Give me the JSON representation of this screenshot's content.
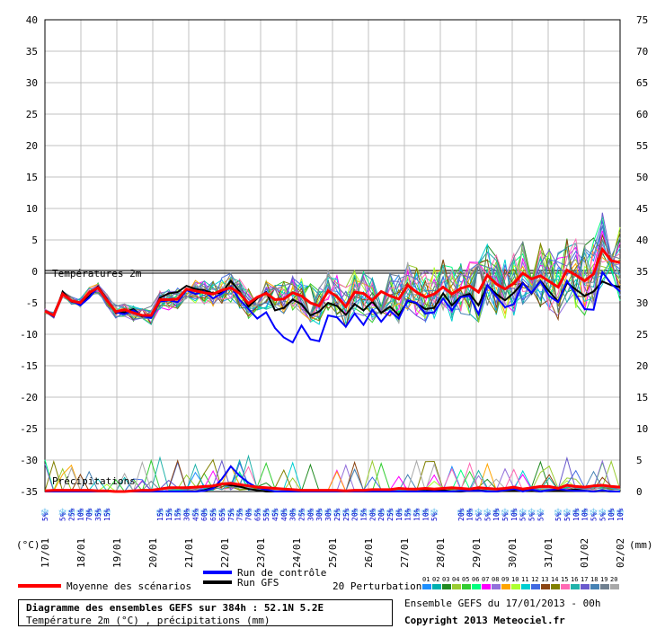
{
  "chart_data": {
    "type": "line",
    "y_left": {
      "ticks": [
        40,
        35,
        30,
        25,
        20,
        15,
        10,
        5,
        0,
        -5,
        -10,
        -15,
        -20,
        -25,
        -30,
        -35
      ],
      "unit": "(°C)"
    },
    "y_right": {
      "ticks": [
        75,
        70,
        65,
        60,
        55,
        50,
        45,
        40,
        35,
        30,
        25,
        20,
        15,
        10,
        5,
        0
      ],
      "unit": "(mm)"
    },
    "x_dates": [
      "17/01",
      "18/01",
      "19/01",
      "20/01",
      "21/01",
      "22/01",
      "23/01",
      "24/01",
      "25/01",
      "26/01",
      "27/01",
      "28/01",
      "29/01",
      "30/01",
      "31/01",
      "01/02",
      "02/02"
    ],
    "x_range_hours": [
      0,
      384
    ],
    "temp_label": "Températures 2m",
    "precip_label": "Précipitations",
    "control_run": {
      "name": "Run de contrôle",
      "color": "#0000ff",
      "t": [
        -6.3,
        -7.2,
        -3.5,
        -4.7,
        -5.4,
        -4.2,
        -2.5,
        -4.5,
        -6.5,
        -6.8,
        -6.2,
        -7.1,
        -7.4,
        -4.8,
        -4.6,
        -4.9,
        -3.0,
        -3.6,
        -3.2,
        -4.3,
        -3.5,
        -2.4,
        -4.5,
        -6.0,
        -7.5,
        -6.5,
        -9.0,
        -10.5,
        -11.3,
        -8.6,
        -10.8,
        -11.1,
        -7.0,
        -7.3,
        -8.8,
        -6.7,
        -8.5,
        -6.1,
        -8.0,
        -6.3,
        -7.5,
        -4.6,
        -5.0,
        -6.7,
        -6.5,
        -4.3,
        -6.2,
        -4.1,
        -3.9,
        -6.8,
        -2.2,
        -4.0,
        -5.7,
        -5.2,
        -1.9,
        -3.4,
        -1.6,
        -3.9,
        -4.9,
        -1.5,
        -3.7,
        -6.0,
        -6.1,
        -0.1,
        -2.0,
        -3.2
      ]
    },
    "gfs_run": {
      "name": "Run GFS",
      "color": "#000000",
      "t": [
        -6.3,
        -7.2,
        -3.2,
        -4.8,
        -5.2,
        -4.0,
        -2.4,
        -4.4,
        -6.6,
        -6.5,
        -6.0,
        -7.2,
        -7.1,
        -4.2,
        -3.5,
        -3.3,
        -2.3,
        -2.8,
        -3.0,
        -3.5,
        -3.4,
        -1.5,
        -3.2,
        -5.6,
        -4.3,
        -3.3,
        -6.2,
        -5.8,
        -4.5,
        -5.2,
        -7.0,
        -6.4,
        -5.0,
        -5.5,
        -6.9,
        -5.2,
        -6.2,
        -4.8,
        -6.6,
        -5.6,
        -7.0,
        -4.7,
        -5.1,
        -6.0,
        -5.8,
        -3.5,
        -5.4,
        -4.0,
        -3.6,
        -5.4,
        -2.2,
        -3.6,
        -4.6,
        -3.4,
        -1.8,
        -3.5,
        -1.5,
        -3.2,
        -4.8,
        -1.8,
        -2.9,
        -3.9,
        -3.2,
        -1.6,
        -2.2,
        -2.5
      ]
    },
    "mean": {
      "name": "Moyenne des scénarios",
      "color": "#ff0000",
      "t": [
        -6.3,
        -7.0,
        -3.6,
        -4.7,
        -5.0,
        -3.4,
        -2.6,
        -4.6,
        -6.4,
        -6.1,
        -6.6,
        -7.0,
        -7.0,
        -4.5,
        -4.5,
        -4.4,
        -2.8,
        -3.1,
        -3.4,
        -3.6,
        -3.0,
        -2.6,
        -3.5,
        -5.1,
        -4.1,
        -3.5,
        -4.5,
        -4.4,
        -3.4,
        -3.9,
        -5.0,
        -5.5,
        -3.1,
        -4.0,
        -5.6,
        -3.3,
        -3.5,
        -4.6,
        -3.2,
        -3.9,
        -4.4,
        -2.2,
        -3.3,
        -4.1,
        -3.6,
        -2.5,
        -3.6,
        -2.7,
        -2.3,
        -3.3,
        -0.6,
        -2.0,
        -2.8,
        -1.9,
        -0.3,
        -1.2,
        -0.7,
        -1.6,
        -2.5,
        0.2,
        -0.6,
        -1.5,
        -0.4,
        3.5,
        1.7,
        1.4
      ]
    },
    "precip_control_mm": [
      0,
      0,
      0,
      0,
      0,
      0,
      0,
      0,
      0,
      0,
      0,
      0,
      0,
      0,
      0,
      0,
      0,
      0,
      0.1,
      0.5,
      2.0,
      4.0,
      2.5,
      1.4,
      0.6,
      0.3,
      0,
      0,
      0,
      0,
      0,
      0,
      0,
      0,
      0,
      0,
      0,
      0,
      0,
      0,
      0,
      0,
      0,
      0,
      0,
      0,
      0,
      0.1,
      0.1,
      0.1,
      0,
      0,
      0.2,
      0.4,
      0,
      0.3,
      0,
      0.2,
      0.4,
      0.2,
      0.1,
      0.1,
      0,
      0.2,
      0,
      0
    ],
    "precip_gfs_mm": [
      0,
      0,
      0,
      0,
      0,
      0,
      0,
      0,
      0,
      0,
      0,
      0,
      0,
      0,
      0,
      0,
      0,
      0,
      0.2,
      0.6,
      1.2,
      1.0,
      0.8,
      0.4,
      0.2,
      0,
      0,
      0,
      0,
      0,
      0,
      0,
      0,
      0,
      0,
      0,
      0,
      0,
      0,
      0,
      0,
      0,
      0,
      0.1,
      0.1,
      0.2,
      0,
      0,
      0.1,
      0.2,
      0,
      0,
      0.1,
      0.1,
      0.2,
      0.1,
      0,
      0.2,
      0.1,
      0.2,
      0.3,
      0.1,
      0,
      0.1,
      0,
      0
    ],
    "precip_mean_mm": [
      0.1,
      0.2,
      0.2,
      0.2,
      0.2,
      0.2,
      0.1,
      0.1,
      0,
      0,
      0.1,
      0.2,
      0.2,
      0.4,
      0.6,
      0.6,
      0.6,
      0.7,
      0.8,
      0.9,
      1.2,
      1.3,
      1.1,
      0.9,
      0.7,
      0.6,
      0.5,
      0.4,
      0.3,
      0.2,
      0.2,
      0.2,
      0.2,
      0.2,
      0.1,
      0.2,
      0.2,
      0.3,
      0.3,
      0.3,
      0.5,
      0.4,
      0.4,
      0.5,
      0.4,
      0.5,
      0.6,
      0.5,
      0.4,
      0.6,
      0.5,
      0.4,
      0.5,
      0.7,
      0.4,
      0.6,
      0.8,
      0.8,
      0.5,
      1.0,
      0.8,
      0.7,
      0.9,
      1.0,
      0.8,
      0.7
    ],
    "precip_probability": [
      "5%",
      "",
      "5%",
      "25%",
      "10%",
      "70%",
      "35%",
      "15%",
      "",
      "",
      "",
      "",
      "",
      "15%",
      "15%",
      "15%",
      "30%",
      "45%",
      "60%",
      "65%",
      "65%",
      "75%",
      "75%",
      "70%",
      "65%",
      "55%",
      "45%",
      "40%",
      "30%",
      "25%",
      "30%",
      "30%",
      "30%",
      "25%",
      "25%",
      "20%",
      "15%",
      "20%",
      "20%",
      "25%",
      "10%",
      "15%",
      "15%",
      "10%",
      "5%",
      "",
      "",
      "20%",
      "10%",
      "5%",
      "5%",
      "10%",
      "5%",
      "10%",
      "5%",
      "5%",
      "5%",
      "",
      "5%",
      "5%",
      "10%",
      "10%",
      "5%",
      "5%",
      "10%",
      "10%"
    ],
    "perturbations_label": "20 Perturbations",
    "perturbation_ids": [
      "01",
      "02",
      "03",
      "04",
      "05",
      "06",
      "07",
      "08",
      "09",
      "10",
      "11",
      "12",
      "13",
      "14",
      "15",
      "16",
      "17",
      "18",
      "19",
      "20"
    ],
    "perturbation_colors": [
      "#1e90ff",
      "#00b0b0",
      "#228b22",
      "#9acd32",
      "#32cd32",
      "#00ff7f",
      "#ff00ff",
      "#9370db",
      "#ffa500",
      "#adff2f",
      "#00ced1",
      "#4169e1",
      "#8b4513",
      "#808000",
      "#ff69b4",
      "#20b2aa",
      "#6a5acd",
      "#4682b4",
      "#708090",
      "#a9a9a9"
    ]
  },
  "legend": {
    "mean": "Moyenne des scénarios",
    "control": "Run de contrôle",
    "gfs": "Run GFS",
    "perturbations": "20 Perturbations"
  },
  "footer": {
    "title": "Diagramme des ensembles GEFS sur 384h : 52.1N 5.2E",
    "subtitle": "Température 2m (°C) , précipitations (mm)",
    "run_info": "Ensemble GEFS du 17/01/2013 - 00h",
    "copyright": "Copyright 2013 Meteociel.fr"
  }
}
